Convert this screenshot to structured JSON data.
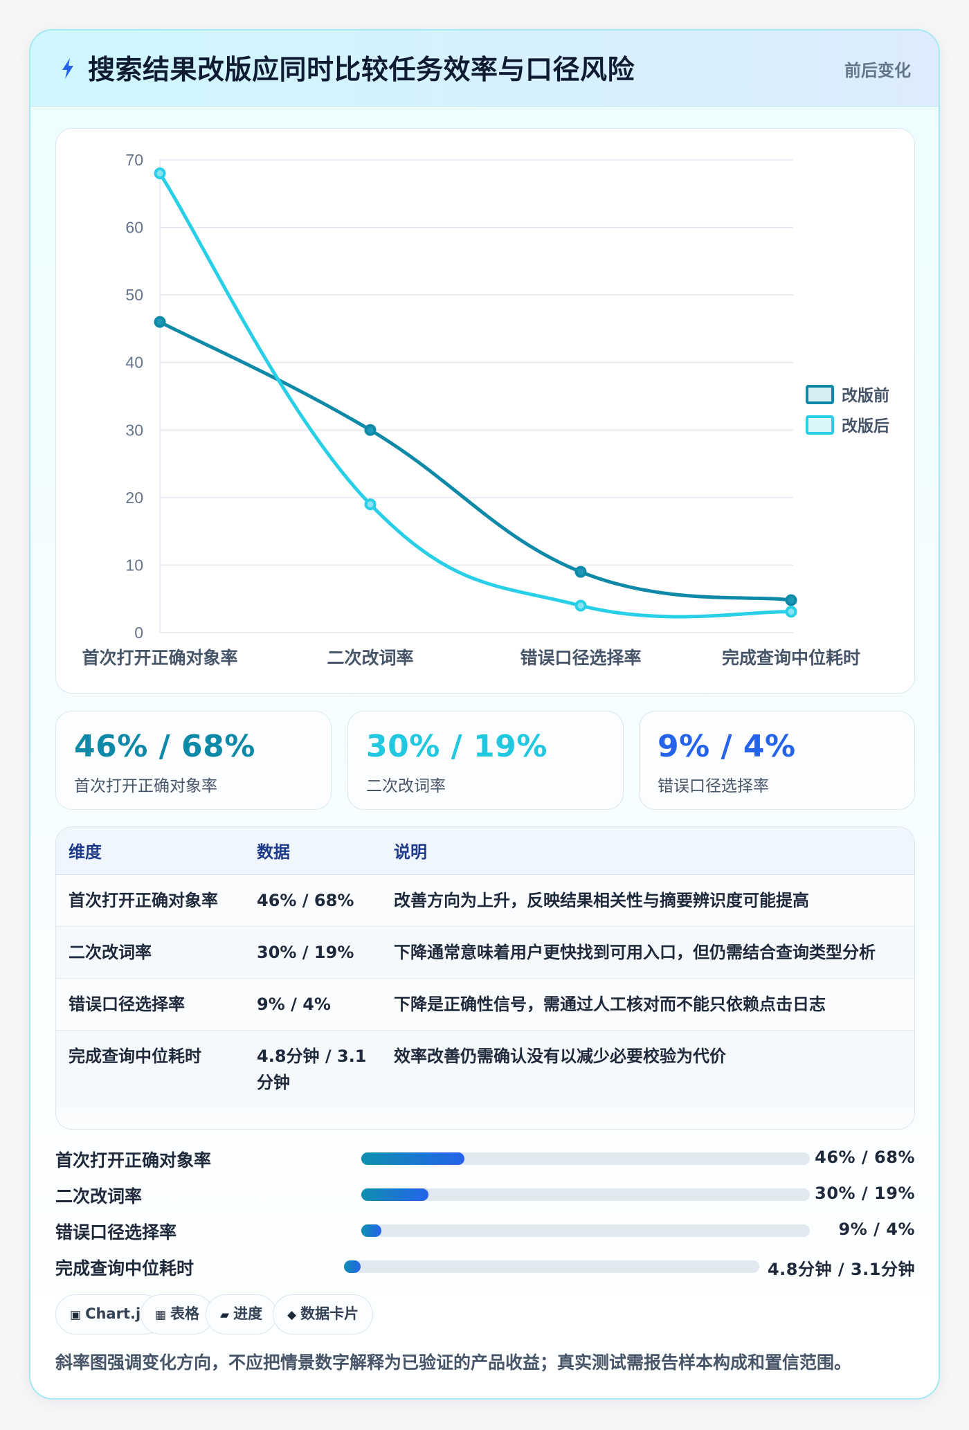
{
  "header": {
    "title": "搜索结果改版应同时比较任务效率与口径风险",
    "tag": "前后变化",
    "icon": "lightning-icon"
  },
  "colors": {
    "before": "#0e8aa8",
    "after": "#28cfe6",
    "accent_blue": "#2563eb"
  },
  "chart_data": {
    "type": "line",
    "categories": [
      "首次打开正确对象率",
      "二次改词率",
      "错误口径选择率",
      "完成查询中位耗时"
    ],
    "series": [
      {
        "name": "改版前",
        "values": [
          46,
          30,
          9,
          4.8
        ],
        "color": "#0e8aa8"
      },
      {
        "name": "改版后",
        "values": [
          68,
          19,
          4,
          3.1
        ],
        "color": "#28cfe6"
      }
    ],
    "yticks": [
      "0",
      "10",
      "20",
      "30",
      "40",
      "50",
      "60",
      "70"
    ],
    "ylim": [
      0,
      70
    ],
    "grid": true,
    "legend_position": "right",
    "title": "",
    "xlabel": "",
    "ylabel": ""
  },
  "kpis": [
    {
      "value": "46% / 68%",
      "label": "首次打开正确对象率",
      "color": "#0e8aa8"
    },
    {
      "value": "30% / 19%",
      "label": "二次改词率",
      "color": "#22c7e0"
    },
    {
      "value": "9% / 4%",
      "label": "错误口径选择率",
      "color": "#2563eb"
    }
  ],
  "table": {
    "headers": [
      "维度",
      "数据",
      "说明"
    ],
    "rows": [
      {
        "dimension": "首次打开正确对象率",
        "data": "46% / 68%",
        "note": "改善方向为上升，反映结果相关性与摘要辨识度可能提高"
      },
      {
        "dimension": "二次改词率",
        "data": "30% / 19%",
        "note": "下降通常意味着用户更快找到可用入口，但仍需结合查询类型分析"
      },
      {
        "dimension": "错误口径选择率",
        "data": "9% / 4%",
        "note": "下降是正确性信号，需通过人工核对而不能只依赖点击日志"
      },
      {
        "dimension": "完成查询中位耗时",
        "data": "4.8分钟 / 3.1分钟",
        "note": "效率改善仍需确认没有以减少必要校验为代价"
      }
    ]
  },
  "progress": [
    {
      "label": "首次打开正确对象率",
      "value": "46% / 68%",
      "fill": 0.23
    },
    {
      "label": "二次改词率",
      "value": "30% / 19%",
      "fill": 0.15
    },
    {
      "label": "错误口径选择率",
      "value": "9% / 4%",
      "fill": 0.045
    },
    {
      "label": "完成查询中位耗时",
      "value": "4.8分钟 / 3.1分钟",
      "fill": 0.03
    }
  ],
  "chips": [
    {
      "icon": "▣",
      "label": "Chart.js"
    },
    {
      "icon": "▦",
      "label": "表格"
    },
    {
      "icon": "▰",
      "label": "进度"
    },
    {
      "icon": "◆",
      "label": "数据卡片"
    }
  ],
  "footnote": "斜率图强调变化方向，不应把情景数字解释为已验证的产品收益；真实测试需报告样本构成和置信范围。"
}
